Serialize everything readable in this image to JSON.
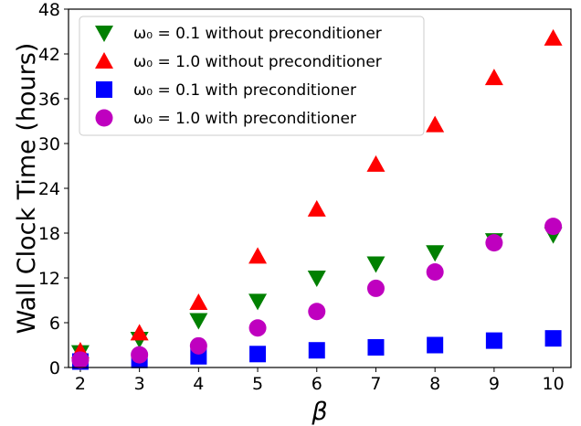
{
  "chart_data": {
    "type": "scatter",
    "xlabel": "β",
    "ylabel": "Wall Clock Time (hours)",
    "xticks": [
      2,
      3,
      4,
      5,
      6,
      7,
      8,
      9,
      10
    ],
    "yticks": [
      0,
      6,
      12,
      18,
      24,
      30,
      36,
      42,
      48
    ],
    "xlim": [
      1.8,
      10.3
    ],
    "ylim": [
      0,
      48
    ],
    "grid": false,
    "legend_placement": "top-left",
    "x": [
      2,
      3,
      4,
      5,
      6,
      7,
      8,
      9,
      10
    ],
    "series": [
      {
        "name": "ω₀ = 0.1 without preconditioner",
        "marker": "triangle-down",
        "color": "#008000",
        "values": [
          2.0,
          3.8,
          6.3,
          8.9,
          12.0,
          13.9,
          15.4,
          17.0,
          17.8
        ]
      },
      {
        "name": "ω₀ = 1.0 without preconditioner",
        "marker": "triangle-up",
        "color": "#ff0000",
        "values": [
          2.2,
          4.6,
          8.7,
          14.9,
          21.2,
          27.2,
          32.5,
          38.8,
          44.1
        ]
      },
      {
        "name": "ω₀ = 0.1 with preconditioner",
        "marker": "square",
        "color": "#0000ff",
        "values": [
          0.8,
          1.0,
          1.5,
          1.8,
          2.3,
          2.7,
          3.0,
          3.6,
          3.9
        ]
      },
      {
        "name": "ω₀ = 1.0 with preconditioner",
        "marker": "circle",
        "color": "#bf00bf",
        "values": [
          1.0,
          1.7,
          2.9,
          5.3,
          7.5,
          10.6,
          12.8,
          16.7,
          18.9
        ]
      }
    ]
  }
}
